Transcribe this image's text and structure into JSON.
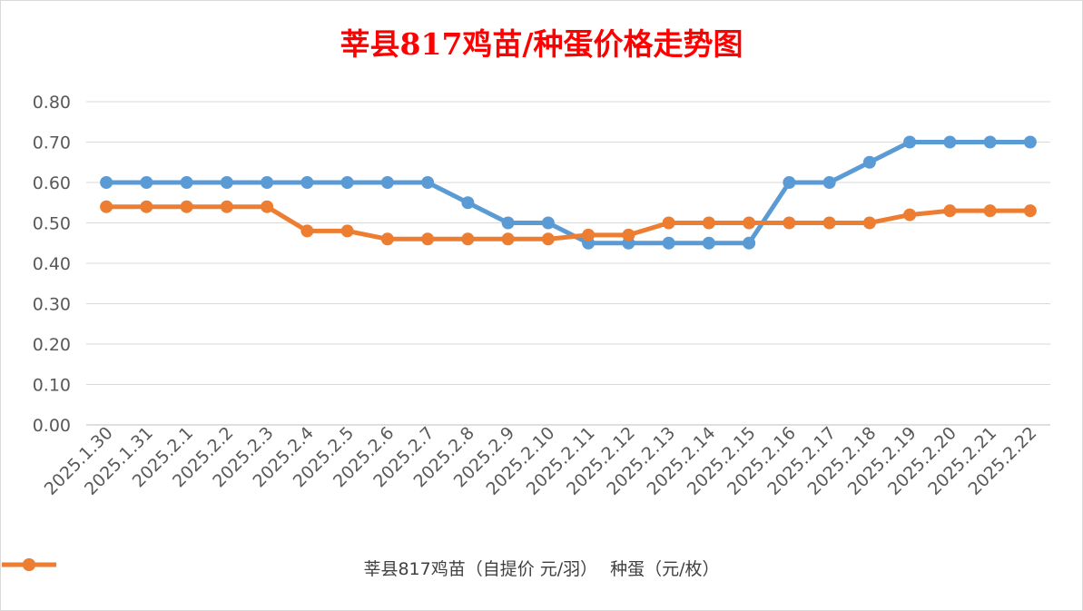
{
  "chart_data": {
    "type": "line",
    "title": "莘县817鸡苗/种蛋价格走势图",
    "categories": [
      "2025.1.30",
      "2025.1.31",
      "2025.2.1",
      "2025.2.2",
      "2025.2.3",
      "2025.2.4",
      "2025.2.5",
      "2025.2.6",
      "2025.2.7",
      "2025.2.8",
      "2025.2.9",
      "2025.2.10",
      "2025.2.11",
      "2025.2.12",
      "2025.2.13",
      "2025.2.14",
      "2025.2.15",
      "2025.2.16",
      "2025.2.17",
      "2025.2.18",
      "2025.2.19",
      "2025.2.20",
      "2025.2.21",
      "2025.2.22"
    ],
    "yticks": [
      "0.00",
      "0.10",
      "0.20",
      "0.30",
      "0.40",
      "0.50",
      "0.60",
      "0.70",
      "0.80"
    ],
    "ylim": [
      0,
      0.8
    ],
    "grid": true,
    "legend_position": "bottom",
    "series": [
      {
        "name": "莘县817鸡苗（自提价 元/羽）",
        "color": "#5b9bd5",
        "values": [
          0.6,
          0.6,
          0.6,
          0.6,
          0.6,
          0.6,
          0.6,
          0.6,
          0.6,
          0.55,
          0.5,
          0.5,
          0.45,
          0.45,
          0.45,
          0.45,
          0.45,
          0.6,
          0.6,
          0.65,
          0.7,
          0.7,
          0.7,
          0.7
        ]
      },
      {
        "name": "种蛋（元/枚）",
        "color": "#ed7d31",
        "values": [
          0.54,
          0.54,
          0.54,
          0.54,
          0.54,
          0.48,
          0.48,
          0.46,
          0.46,
          0.46,
          0.46,
          0.46,
          0.47,
          0.47,
          0.5,
          0.5,
          0.5,
          0.5,
          0.5,
          0.5,
          0.52,
          0.53,
          0.53,
          0.53
        ]
      }
    ]
  }
}
